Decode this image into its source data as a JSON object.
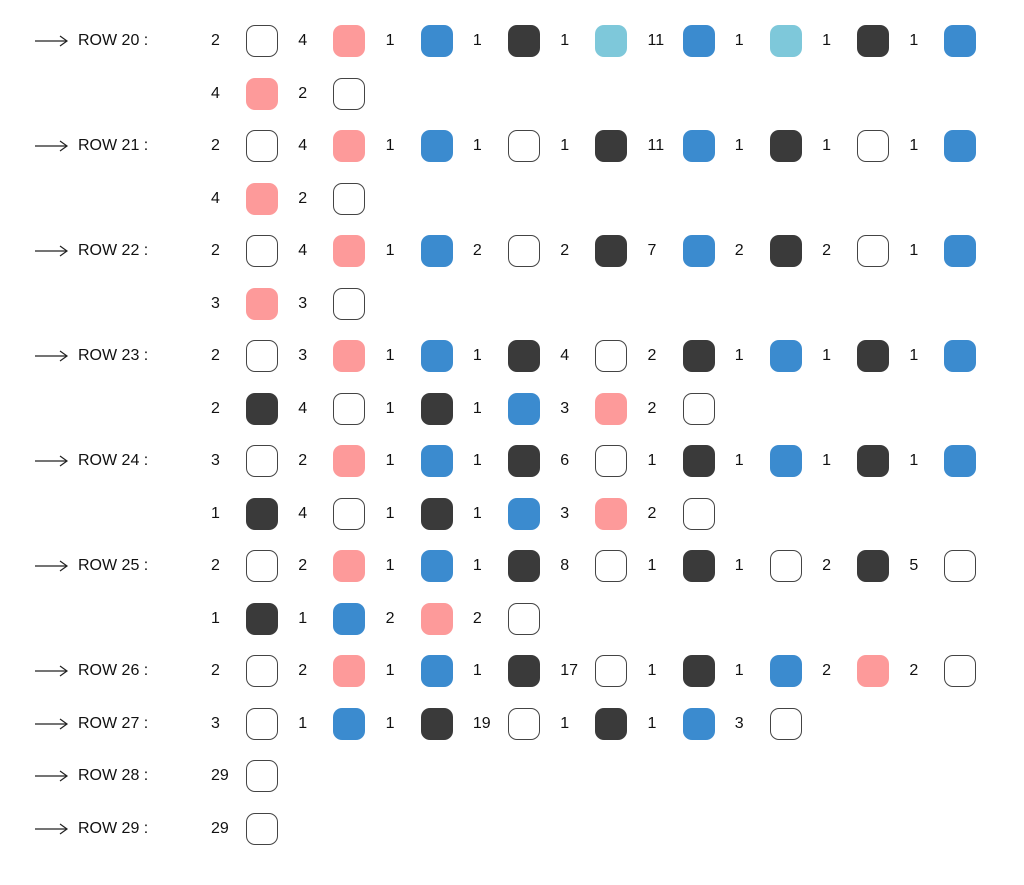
{
  "colors": {
    "W": "#ffffff",
    "P": "#fd9a9a",
    "B": "#3b8bcf",
    "D": "#3a3a3a",
    "L": "#7ec8da"
  },
  "color_names": {
    "W": "white",
    "P": "pink",
    "B": "blue",
    "D": "dark-gray",
    "L": "light-blue"
  },
  "lines": [
    {
      "label": "ROW 20 :",
      "items": [
        [
          "2",
          "W"
        ],
        [
          "4",
          "P"
        ],
        [
          "1",
          "B"
        ],
        [
          "1",
          "D"
        ],
        [
          "1",
          "L"
        ],
        [
          "11",
          "B"
        ],
        [
          "1",
          "L"
        ],
        [
          "1",
          "D"
        ],
        [
          "1",
          "B"
        ]
      ]
    },
    {
      "label": "",
      "items": [
        [
          "4",
          "P"
        ],
        [
          "2",
          "W"
        ]
      ]
    },
    {
      "label": "ROW 21 :",
      "items": [
        [
          "2",
          "W"
        ],
        [
          "4",
          "P"
        ],
        [
          "1",
          "B"
        ],
        [
          "1",
          "W"
        ],
        [
          "1",
          "D"
        ],
        [
          "11",
          "B"
        ],
        [
          "1",
          "D"
        ],
        [
          "1",
          "W"
        ],
        [
          "1",
          "B"
        ]
      ]
    },
    {
      "label": "",
      "items": [
        [
          "4",
          "P"
        ],
        [
          "2",
          "W"
        ]
      ]
    },
    {
      "label": "ROW 22 :",
      "items": [
        [
          "2",
          "W"
        ],
        [
          "4",
          "P"
        ],
        [
          "1",
          "B"
        ],
        [
          "2",
          "W"
        ],
        [
          "2",
          "D"
        ],
        [
          "7",
          "B"
        ],
        [
          "2",
          "D"
        ],
        [
          "2",
          "W"
        ],
        [
          "1",
          "B"
        ]
      ]
    },
    {
      "label": "",
      "items": [
        [
          "3",
          "P"
        ],
        [
          "3",
          "W"
        ]
      ]
    },
    {
      "label": "ROW 23 :",
      "items": [
        [
          "2",
          "W"
        ],
        [
          "3",
          "P"
        ],
        [
          "1",
          "B"
        ],
        [
          "1",
          "D"
        ],
        [
          "4",
          "W"
        ],
        [
          "2",
          "D"
        ],
        [
          "1",
          "B"
        ],
        [
          "1",
          "D"
        ],
        [
          "1",
          "B"
        ]
      ]
    },
    {
      "label": "",
      "items": [
        [
          "2",
          "D"
        ],
        [
          "4",
          "W"
        ],
        [
          "1",
          "D"
        ],
        [
          "1",
          "B"
        ],
        [
          "3",
          "P"
        ],
        [
          "2",
          "W"
        ]
      ]
    },
    {
      "label": "ROW 24 :",
      "items": [
        [
          "3",
          "W"
        ],
        [
          "2",
          "P"
        ],
        [
          "1",
          "B"
        ],
        [
          "1",
          "D"
        ],
        [
          "6",
          "W"
        ],
        [
          "1",
          "D"
        ],
        [
          "1",
          "B"
        ],
        [
          "1",
          "D"
        ],
        [
          "1",
          "B"
        ]
      ]
    },
    {
      "label": "",
      "items": [
        [
          "1",
          "D"
        ],
        [
          "4",
          "W"
        ],
        [
          "1",
          "D"
        ],
        [
          "1",
          "B"
        ],
        [
          "3",
          "P"
        ],
        [
          "2",
          "W"
        ]
      ]
    },
    {
      "label": "ROW 25 :",
      "items": [
        [
          "2",
          "W"
        ],
        [
          "2",
          "P"
        ],
        [
          "1",
          "B"
        ],
        [
          "1",
          "D"
        ],
        [
          "8",
          "W"
        ],
        [
          "1",
          "D"
        ],
        [
          "1",
          "W"
        ],
        [
          "2",
          "D"
        ],
        [
          "5",
          "W"
        ]
      ]
    },
    {
      "label": "",
      "items": [
        [
          "1",
          "D"
        ],
        [
          "1",
          "B"
        ],
        [
          "2",
          "P"
        ],
        [
          "2",
          "W"
        ]
      ]
    },
    {
      "label": "ROW 26 :",
      "items": [
        [
          "2",
          "W"
        ],
        [
          "2",
          "P"
        ],
        [
          "1",
          "B"
        ],
        [
          "1",
          "D"
        ],
        [
          "17",
          "W"
        ],
        [
          "1",
          "D"
        ],
        [
          "1",
          "B"
        ],
        [
          "2",
          "P"
        ],
        [
          "2",
          "W"
        ]
      ]
    },
    {
      "label": "ROW 27 :",
      "items": [
        [
          "3",
          "W"
        ],
        [
          "1",
          "B"
        ],
        [
          "1",
          "D"
        ],
        [
          "19",
          "W"
        ],
        [
          "1",
          "D"
        ],
        [
          "1",
          "B"
        ],
        [
          "3",
          "W"
        ]
      ]
    },
    {
      "label": "ROW 28 :",
      "items": [
        [
          "29",
          "W"
        ]
      ]
    },
    {
      "label": "ROW 29 :",
      "items": [
        [
          "29",
          "W"
        ]
      ]
    }
  ]
}
